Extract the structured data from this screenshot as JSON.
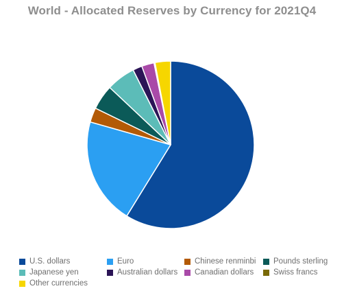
{
  "chart_data": {
    "type": "pie",
    "title": "World - Allocated Reserves by Currency for 2021Q4",
    "start_angle_deg": 0,
    "direction": "clockwise",
    "legend_position": "bottom",
    "slices": [
      {
        "label": "U.S. dollars",
        "value": 58.8,
        "color": "#0a4a9a"
      },
      {
        "label": "Euro",
        "value": 20.6,
        "color": "#2b9ff2"
      },
      {
        "label": "Chinese renminbi",
        "value": 2.8,
        "color": "#b35a06"
      },
      {
        "label": "Pounds sterling",
        "value": 4.8,
        "color": "#0b5a58"
      },
      {
        "label": "Japanese yen",
        "value": 5.6,
        "color": "#5cbcb8"
      },
      {
        "label": "Australian dollars",
        "value": 1.8,
        "color": "#2b1456"
      },
      {
        "label": "Canadian dollars",
        "value": 2.4,
        "color": "#a94aa8"
      },
      {
        "label": "Swiss francs",
        "value": 0.2,
        "color": "#7a6a08"
      },
      {
        "label": "Other currencies",
        "value": 3.0,
        "color": "#f6d600"
      }
    ]
  }
}
